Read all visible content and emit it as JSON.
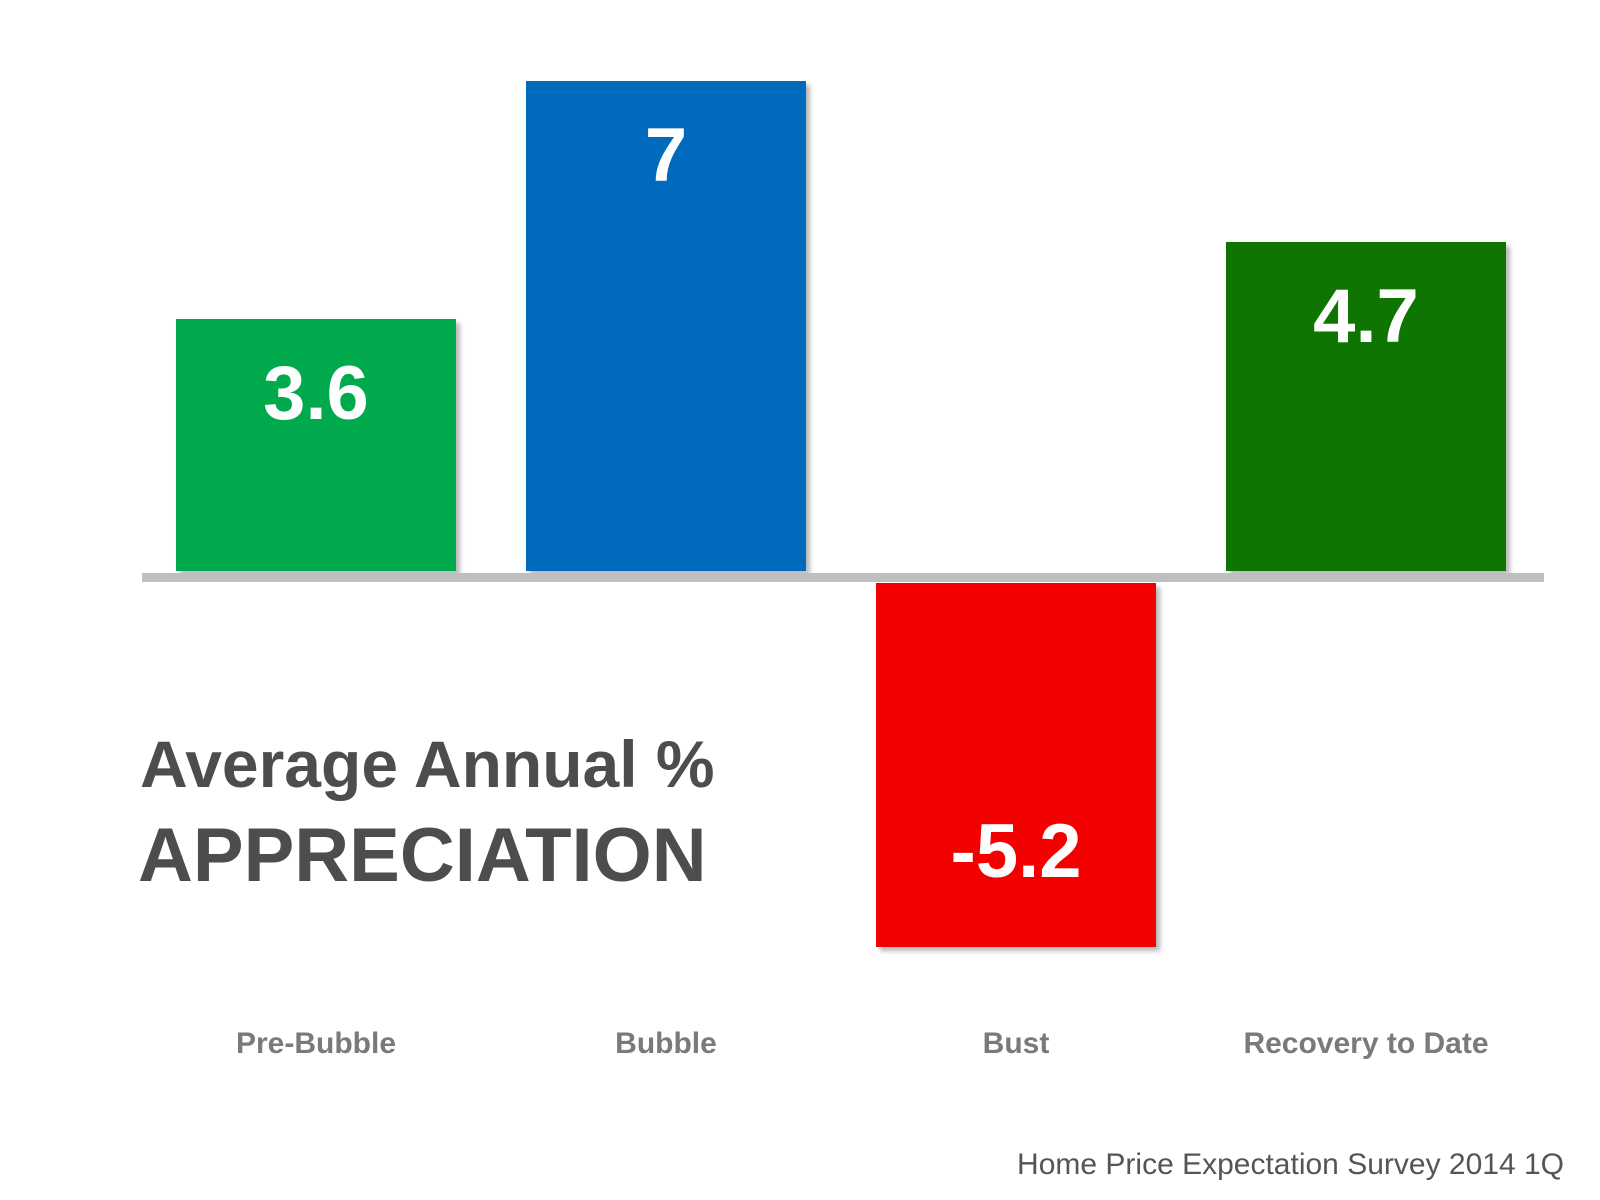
{
  "title": {
    "line1": "Average Annual %",
    "line2": "APPRECIATION"
  },
  "source": "Home Price Expectation Survey 2014 1Q",
  "chart_data": {
    "type": "bar",
    "categories": [
      "Pre-Bubble",
      "Bubble",
      "Bust",
      "Recovery to Date"
    ],
    "values": [
      3.6,
      7,
      -5.2,
      4.7
    ],
    "value_labels": [
      "3.6",
      "7",
      "-5.2",
      "4.7"
    ],
    "colors": [
      "#05a94c",
      "#066bbd",
      "#f50505",
      "#087503"
    ],
    "title": "Average Annual % APPRECIATION",
    "xlabel": "",
    "ylabel": "",
    "grid": false,
    "legend": "none"
  }
}
